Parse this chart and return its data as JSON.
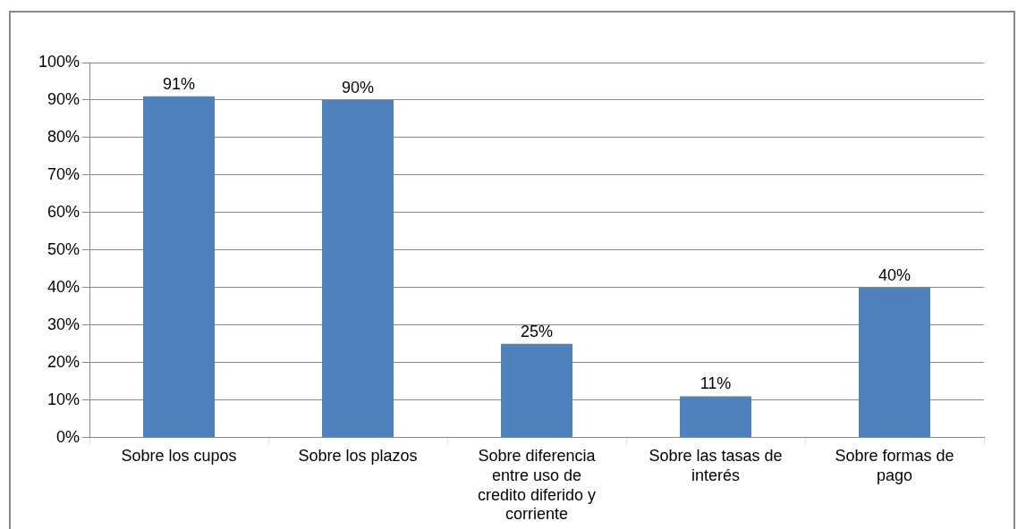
{
  "chart_data": {
    "type": "bar",
    "categories": [
      "Sobre los cupos",
      "Sobre los plazos",
      "Sobre diferencia entre uso de credito diferido y corriente",
      "Sobre las tasas de interés",
      "Sobre formas de pago"
    ],
    "values": [
      91,
      90,
      25,
      11,
      40
    ],
    "value_labels": [
      "91%",
      "90%",
      "25%",
      "11%",
      "40%"
    ],
    "color": "#4f81bd",
    "ylim": [
      0,
      100
    ],
    "yticks": [
      {
        "value": 0,
        "label": "0%"
      },
      {
        "value": 10,
        "label": "10%"
      },
      {
        "value": 20,
        "label": "20%"
      },
      {
        "value": 30,
        "label": "30%"
      },
      {
        "value": 40,
        "label": "40%"
      },
      {
        "value": 50,
        "label": "50%"
      },
      {
        "value": 60,
        "label": "60%"
      },
      {
        "value": 70,
        "label": "70%"
      },
      {
        "value": 80,
        "label": "80%"
      },
      {
        "value": 90,
        "label": "90%"
      },
      {
        "value": 100,
        "label": "100%"
      }
    ],
    "grid": true,
    "legend": false
  }
}
